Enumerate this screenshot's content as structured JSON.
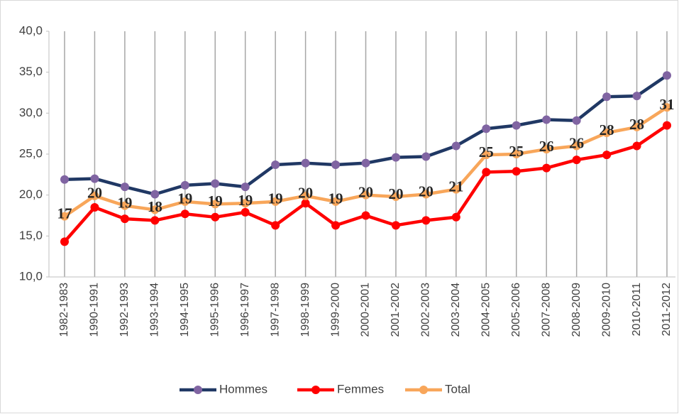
{
  "chart_data": {
    "type": "line",
    "categories": [
      "1982-1983",
      "1990-1991",
      "1992-1993",
      "1993-1994",
      "1994-1995",
      "1995-1996",
      "1996-1997",
      "1997-1998",
      "1998-1999",
      "1999-2000",
      "2000-2001",
      "2001-2002",
      "2002-2003",
      "2003-2004",
      "2004-2005",
      "2005-2006",
      "2007-2008",
      "2008-2009",
      "2009-2010",
      "2010-2011",
      "2011-2012"
    ],
    "ylim": [
      10,
      40
    ],
    "yticks": [
      {
        "value": 10,
        "label": "10,0"
      },
      {
        "value": 15,
        "label": "15,0"
      },
      {
        "value": 20,
        "label": "20,0"
      },
      {
        "value": 25,
        "label": "25,0"
      },
      {
        "value": 30,
        "label": "30,0"
      },
      {
        "value": 35,
        "label": "35,0"
      },
      {
        "value": 40,
        "label": "40,0"
      }
    ],
    "grid": "x",
    "legend": "bottom",
    "series": [
      {
        "name": "Hommes",
        "color": "#203864",
        "marker_color": "#8064a2",
        "values": [
          21.9,
          22.0,
          21.0,
          20.1,
          21.2,
          21.4,
          21.0,
          23.7,
          23.9,
          23.7,
          23.9,
          24.6,
          24.7,
          26.0,
          28.1,
          28.5,
          29.2,
          29.1,
          32.0,
          32.1,
          34.6
        ]
      },
      {
        "name": "Femmes",
        "color": "#ff0000",
        "marker_color": "#ff0000",
        "values": [
          14.3,
          18.5,
          17.1,
          16.9,
          17.7,
          17.3,
          17.9,
          16.3,
          19.0,
          16.3,
          17.5,
          16.3,
          16.9,
          17.3,
          22.8,
          22.9,
          23.3,
          24.3,
          24.9,
          26.0,
          28.5
        ]
      },
      {
        "name": "Total",
        "color": "#f8a65a",
        "marker_color": "#f8a65a",
        "values": [
          17.4,
          19.9,
          18.7,
          18.2,
          19.2,
          18.9,
          19.0,
          19.2,
          19.9,
          19.2,
          20.0,
          19.8,
          20.1,
          20.7,
          24.9,
          25.0,
          25.6,
          26.0,
          27.6,
          28.3,
          30.7
        ],
        "value_labels": [
          "17",
          "20",
          "19",
          "18",
          "19",
          "19",
          "19",
          "19",
          "20",
          "19",
          "20",
          "20",
          "20",
          "21",
          "25",
          "25",
          "26",
          "26",
          "28",
          "28",
          "31"
        ]
      }
    ]
  }
}
